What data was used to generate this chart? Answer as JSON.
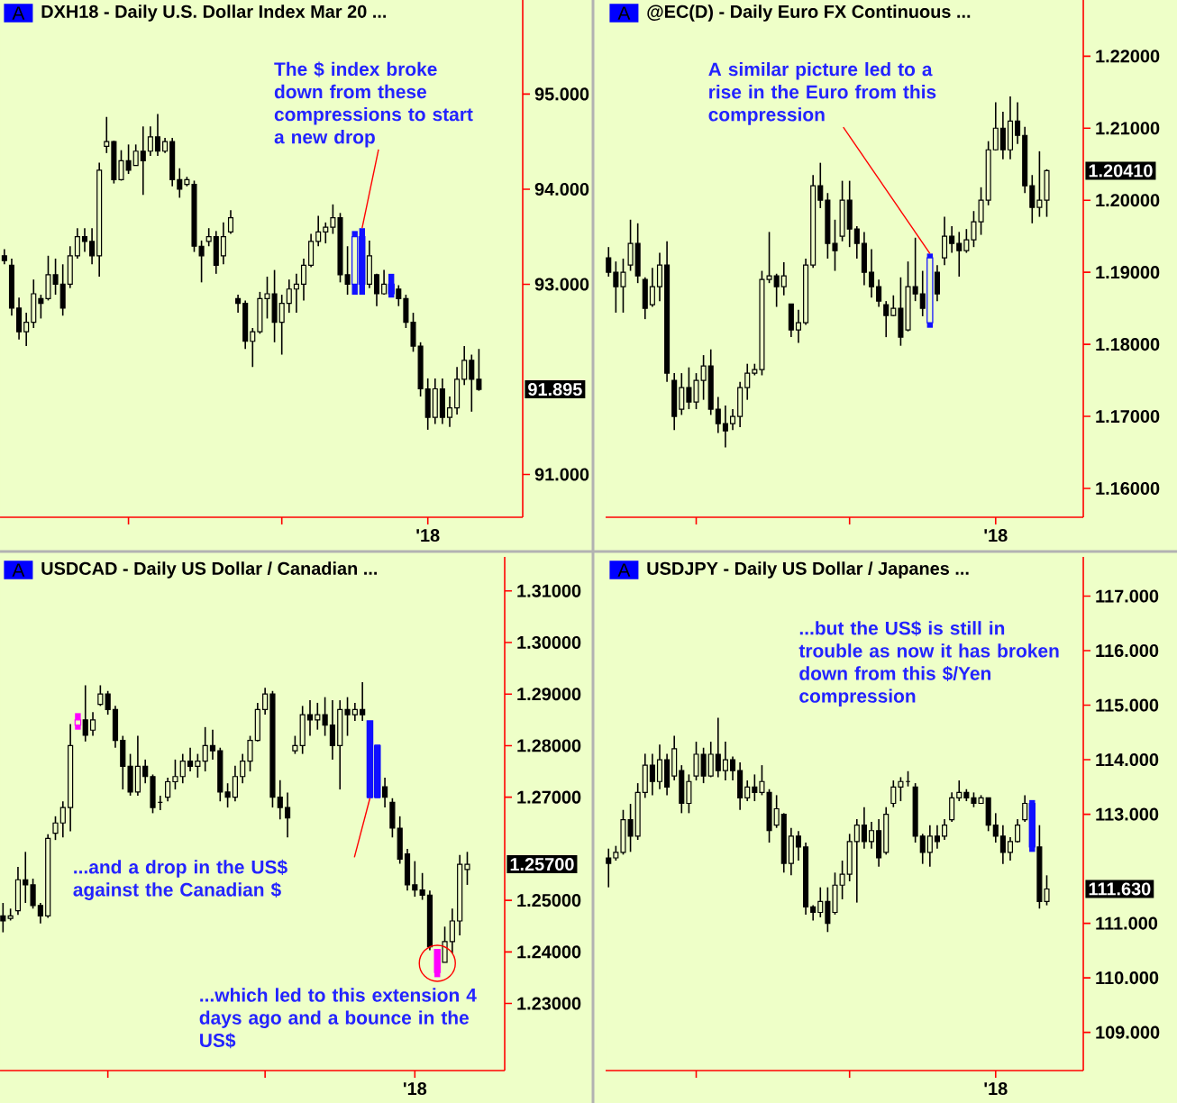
{
  "chart_data": [
    {
      "type": "candlestick",
      "title": "DXH18 - Daily  U.S. Dollar Index Mar 20 ...",
      "subtitle": "A",
      "categories": [
        null,
        null,
        null,
        null,
        null,
        null,
        null,
        null,
        null,
        null,
        null,
        null,
        null,
        null,
        null,
        null,
        null,
        null,
        null,
        null,
        null,
        null,
        null,
        null,
        null,
        null,
        null,
        null,
        null,
        null,
        null,
        null,
        null,
        null,
        null,
        null,
        null,
        null,
        null,
        null,
        null,
        null,
        null,
        null,
        null,
        null,
        null,
        null,
        null,
        null,
        null,
        null,
        null,
        null,
        null,
        null,
        null,
        null,
        null,
        null,
        null,
        null,
        null,
        null,
        null,
        null
      ],
      "ohlc": [
        [
          93.3,
          93.37,
          93.21,
          93.25
        ],
        [
          93.2,
          93.27,
          92.67,
          92.75
        ],
        [
          92.75,
          92.86,
          92.42,
          92.5
        ],
        [
          92.5,
          92.7,
          92.35,
          92.6
        ],
        [
          92.6,
          93.05,
          92.54,
          92.9
        ],
        [
          92.85,
          92.89,
          92.64,
          92.8
        ],
        [
          92.85,
          93.3,
          92.83,
          93.1
        ],
        [
          93.1,
          93.27,
          92.89,
          93.0
        ],
        [
          93.0,
          93.21,
          92.67,
          92.75
        ],
        [
          93.0,
          93.4,
          92.96,
          93.3
        ],
        [
          93.3,
          93.59,
          93.27,
          93.5
        ],
        [
          93.5,
          93.59,
          93.34,
          93.45
        ],
        [
          93.45,
          93.59,
          93.21,
          93.3
        ],
        [
          93.3,
          94.28,
          93.08,
          94.2
        ],
        [
          94.45,
          94.76,
          94.38,
          94.5
        ],
        [
          94.5,
          94.51,
          94.06,
          94.1
        ],
        [
          94.1,
          94.41,
          94.09,
          94.3
        ],
        [
          94.3,
          94.47,
          94.16,
          94.2
        ],
        [
          94.25,
          94.47,
          94.25,
          94.4
        ],
        [
          94.4,
          94.66,
          93.94,
          94.3
        ],
        [
          94.4,
          94.66,
          94.35,
          94.55
        ],
        [
          94.55,
          94.79,
          94.35,
          94.4
        ],
        [
          94.4,
          94.54,
          94.38,
          94.5
        ],
        [
          94.5,
          94.54,
          94.03,
          94.1
        ],
        [
          94.1,
          94.22,
          93.91,
          94.0
        ],
        [
          94.05,
          94.13,
          94.03,
          94.1
        ],
        [
          94.05,
          94.09,
          93.34,
          93.4
        ],
        [
          93.4,
          93.46,
          93.02,
          93.3
        ],
        [
          93.45,
          93.59,
          93.4,
          93.5
        ],
        [
          93.5,
          93.56,
          93.11,
          93.2
        ],
        [
          93.3,
          93.65,
          93.21,
          93.5
        ],
        [
          93.55,
          93.78,
          93.53,
          93.7
        ],
        [
          92.85,
          92.89,
          92.7,
          92.8
        ],
        [
          92.8,
          92.83,
          92.32,
          92.4
        ],
        [
          92.4,
          92.54,
          92.13,
          92.5
        ],
        [
          92.5,
          92.92,
          92.48,
          92.85
        ],
        [
          92.85,
          93.08,
          92.64,
          92.9
        ],
        [
          92.9,
          93.15,
          92.39,
          92.6
        ],
        [
          92.6,
          92.89,
          92.26,
          92.8
        ],
        [
          92.8,
          93.05,
          92.7,
          92.95
        ],
        [
          92.95,
          93.11,
          92.7,
          93.0
        ],
        [
          93.0,
          93.27,
          92.83,
          93.2
        ],
        [
          93.2,
          93.53,
          93.18,
          93.45
        ],
        [
          93.45,
          93.72,
          93.4,
          93.55
        ],
        [
          93.55,
          93.65,
          93.43,
          93.6
        ],
        [
          93.6,
          93.84,
          93.53,
          93.7
        ],
        [
          93.7,
          93.75,
          93.02,
          93.1
        ],
        [
          93.1,
          93.4,
          92.89,
          93.0
        ],
        [
          93.0,
          93.56,
          92.89,
          93.5
        ],
        [
          93.5,
          93.59,
          92.89,
          93.0
        ],
        [
          93.0,
          93.46,
          92.96,
          93.3
        ],
        [
          93.1,
          93.11,
          92.77,
          92.9
        ],
        [
          92.9,
          93.15,
          92.89,
          93.0
        ],
        [
          93.0,
          93.11,
          92.86,
          92.9
        ],
        [
          92.95,
          92.99,
          92.77,
          92.85
        ],
        [
          92.85,
          92.89,
          92.54,
          92.6
        ],
        [
          92.6,
          92.7,
          92.29,
          92.35
        ],
        [
          92.35,
          92.39,
          91.82,
          91.9
        ],
        [
          91.9,
          92.01,
          91.47,
          91.6
        ],
        [
          91.6,
          92.01,
          91.53,
          91.9
        ],
        [
          91.9,
          92.01,
          91.53,
          91.6
        ],
        [
          91.6,
          91.82,
          91.5,
          91.7
        ],
        [
          91.7,
          92.13,
          91.63,
          92.0
        ],
        [
          92.0,
          92.35,
          91.94,
          92.2
        ],
        [
          92.2,
          92.26,
          91.66,
          92.0
        ],
        [
          92.0,
          92.32,
          91.88,
          91.895
        ]
      ],
      "colors": [
        "#000000",
        "#000000",
        "#000000",
        "#000000",
        "#000000",
        "#000000",
        "#000000",
        "#000000",
        "#000000",
        "#000000",
        "#000000",
        "#000000",
        "#000000",
        "#000000",
        "#000000",
        "#000000",
        "#000000",
        "#000000",
        "#000000",
        "#000000",
        "#000000",
        "#000000",
        "#000000",
        "#000000",
        "#000000",
        "#000000",
        "#000000",
        "#000000",
        "#000000",
        "#000000",
        "#000000",
        "#000000",
        "#000000",
        "#000000",
        "#000000",
        "#000000",
        "#000000",
        "#000000",
        "#000000",
        "#000000",
        "#000000",
        "#000000",
        "#000000",
        "#000000",
        "#000000",
        "#000000",
        "#000000",
        "#000000",
        "#1010ff",
        "#1010ff",
        "#000000",
        "#000000",
        "#000000",
        "#1010ff",
        "#000000",
        "#000000",
        "#000000",
        "#000000",
        "#000000",
        "#000000",
        "#000000",
        "#000000",
        "#000000",
        "#000000",
        "#000000",
        "#000000"
      ],
      "ylim": [
        90.55,
        95.99
      ],
      "yticks": [
        {
          "value": 91,
          "label": "91.000"
        },
        {
          "value": 93,
          "label": "93.000"
        },
        {
          "value": 94,
          "label": "94.000"
        },
        {
          "value": 95,
          "label": "95.000"
        }
      ],
      "annotations": [
        "The $ index broke down from these compressions to start a new drop",
        "91.895",
        "'18"
      ]
    },
    {
      "type": "candlestick",
      "title": "@EC(D) - Daily  Euro FX Continuous ...",
      "subtitle": "A",
      "categories": [
        null,
        null,
        null,
        null,
        null,
        null,
        null,
        null,
        null,
        null,
        null,
        null,
        null,
        null,
        null,
        null,
        null,
        null,
        null,
        null,
        null,
        null,
        null,
        null,
        null,
        null,
        null,
        null,
        null,
        null,
        null,
        null,
        null,
        null,
        null,
        null,
        null,
        null,
        null,
        null,
        null,
        null,
        null,
        null,
        null,
        null,
        null,
        null,
        null,
        null,
        null,
        null,
        null,
        null,
        null,
        null,
        null,
        null,
        null,
        null,
        null
      ],
      "ohlc": [
        [
          1.192,
          1.1935,
          1.1894,
          1.19
        ],
        [
          1.19,
          1.1915,
          1.1844,
          1.188
        ],
        [
          1.188,
          1.1919,
          1.1844,
          1.19
        ],
        [
          1.191,
          1.1973,
          1.1902,
          1.194
        ],
        [
          1.194,
          1.1968,
          1.1885,
          1.1895
        ],
        [
          1.189,
          1.1893,
          1.1835,
          1.185
        ],
        [
          1.1855,
          1.1906,
          1.1852,
          1.188
        ],
        [
          1.188,
          1.1927,
          1.186,
          1.191
        ],
        [
          1.191,
          1.1943,
          1.1748,
          1.176
        ],
        [
          1.175,
          1.176,
          1.1681,
          1.17
        ],
        [
          1.171,
          1.176,
          1.1702,
          1.174
        ],
        [
          1.174,
          1.1768,
          1.171,
          1.172
        ],
        [
          1.172,
          1.176,
          1.171,
          1.175
        ],
        [
          1.175,
          1.1785,
          1.1723,
          1.177
        ],
        [
          1.177,
          1.1793,
          1.1702,
          1.171
        ],
        [
          1.171,
          1.1727,
          1.1677,
          1.169
        ],
        [
          1.169,
          1.1715,
          1.1657,
          1.168
        ],
        [
          1.169,
          1.171,
          1.1681,
          1.17
        ],
        [
          1.17,
          1.1748,
          1.1685,
          1.174
        ],
        [
          1.174,
          1.1773,
          1.1723,
          1.176
        ],
        [
          1.176,
          1.1773,
          1.1757,
          1.1765
        ],
        [
          1.1765,
          1.1902,
          1.1757,
          1.189
        ],
        [
          1.189,
          1.1956,
          1.1885,
          1.1895
        ],
        [
          1.1895,
          1.1898,
          1.1852,
          1.188
        ],
        [
          1.188,
          1.1914,
          1.1868,
          1.1895
        ],
        [
          1.1856,
          1.1856,
          1.181,
          1.182
        ],
        [
          1.182,
          1.1848,
          1.1802,
          1.183
        ],
        [
          1.183,
          1.1919,
          1.1827,
          1.191
        ],
        [
          1.191,
          1.2035,
          1.1906,
          1.202
        ],
        [
          1.202,
          1.2052,
          1.1989,
          1.2
        ],
        [
          1.2,
          1.201,
          1.1919,
          1.194
        ],
        [
          1.194,
          1.1973,
          1.1902,
          1.193
        ],
        [
          1.195,
          1.2027,
          1.1943,
          1.2
        ],
        [
          1.2,
          1.2027,
          1.1935,
          1.196
        ],
        [
          1.196,
          1.1964,
          1.1919,
          1.194
        ],
        [
          1.194,
          1.1956,
          1.1882,
          1.19
        ],
        [
          1.19,
          1.1932,
          1.1865,
          1.188
        ],
        [
          1.188,
          1.189,
          1.1852,
          1.186
        ],
        [
          1.1855,
          1.186,
          1.181,
          1.184
        ],
        [
          1.184,
          1.1868,
          1.1839,
          1.185
        ],
        [
          1.185,
          1.1893,
          1.1798,
          1.181
        ],
        [
          1.182,
          1.1915,
          1.1818,
          1.188
        ],
        [
          1.188,
          1.1948,
          1.186,
          1.187
        ],
        [
          1.187,
          1.1902,
          1.1839,
          1.185
        ],
        [
          1.183,
          1.1926,
          1.1823,
          1.192
        ],
        [
          1.19,
          1.191,
          1.186,
          1.187
        ],
        [
          1.192,
          1.1977,
          1.191,
          1.195
        ],
        [
          1.195,
          1.1964,
          1.1927,
          1.194
        ],
        [
          1.194,
          1.1956,
          1.1894,
          1.193
        ],
        [
          1.193,
          1.196,
          1.1927,
          1.1945
        ],
        [
          1.1945,
          1.1985,
          1.1935,
          1.197
        ],
        [
          1.197,
          1.2018,
          1.1952,
          1.2
        ],
        [
          1.2,
          1.2082,
          1.1993,
          1.207
        ],
        [
          1.207,
          1.2136,
          1.2069,
          1.21
        ],
        [
          1.21,
          1.2123,
          1.2057,
          1.207
        ],
        [
          1.207,
          1.2144,
          1.2057,
          1.211
        ],
        [
          1.211,
          1.2136,
          1.2078,
          1.209
        ],
        [
          1.209,
          1.2102,
          1.201,
          1.202
        ],
        [
          1.202,
          1.2035,
          1.1968,
          1.199
        ],
        [
          1.199,
          1.2068,
          1.1977,
          1.2
        ],
        [
          1.2,
          1.2043,
          1.1977,
          1.2041
        ]
      ],
      "colors": [
        "#000000",
        "#000000",
        "#000000",
        "#000000",
        "#000000",
        "#000000",
        "#000000",
        "#000000",
        "#000000",
        "#000000",
        "#000000",
        "#000000",
        "#000000",
        "#000000",
        "#000000",
        "#000000",
        "#000000",
        "#000000",
        "#000000",
        "#000000",
        "#000000",
        "#000000",
        "#000000",
        "#000000",
        "#000000",
        "#000000",
        "#000000",
        "#000000",
        "#000000",
        "#000000",
        "#000000",
        "#000000",
        "#000000",
        "#000000",
        "#000000",
        "#000000",
        "#000000",
        "#000000",
        "#000000",
        "#000000",
        "#000000",
        "#000000",
        "#000000",
        "#000000",
        "#1010ff",
        "#000000",
        "#000000",
        "#000000",
        "#000000",
        "#000000",
        "#000000",
        "#000000",
        "#000000",
        "#000000",
        "#000000",
        "#000000",
        "#000000",
        "#000000",
        "#000000",
        "#000000",
        "#000000"
      ],
      "ylim": [
        1.156,
        1.2278
      ],
      "yticks": [
        {
          "value": 1.16,
          "label": "1.16000"
        },
        {
          "value": 1.17,
          "label": "1.17000"
        },
        {
          "value": 1.18,
          "label": "1.18000"
        },
        {
          "value": 1.19,
          "label": "1.19000"
        },
        {
          "value": 1.2,
          "label": "1.20000"
        },
        {
          "value": 1.21,
          "label": "1.21000"
        },
        {
          "value": 1.22,
          "label": "1.22000"
        }
      ],
      "annotations": [
        "A similar picture led to a rise in the Euro from this compression",
        "1.20410",
        "'18"
      ]
    },
    {
      "type": "candlestick",
      "title": "USDCAD - Daily  US Dollar / Canadian ...",
      "subtitle": "A",
      "categories": [
        null,
        null,
        null,
        null,
        null,
        null,
        null,
        null,
        null,
        null,
        null,
        null,
        null,
        null,
        null,
        null,
        null,
        null,
        null,
        null,
        null,
        null,
        null,
        null,
        null,
        null,
        null,
        null,
        null,
        null,
        null,
        null,
        null,
        null,
        null,
        null,
        null,
        null,
        null,
        null,
        null,
        null,
        null,
        null,
        null,
        null,
        null,
        null,
        null,
        null,
        null,
        null,
        null,
        null,
        null,
        null,
        null,
        null,
        null,
        null,
        null,
        null,
        null
      ],
      "ohlc": [
        [
          1.247,
          1.2495,
          1.2438,
          1.246
        ],
        [
          1.2465,
          1.2484,
          1.2461,
          1.247
        ],
        [
          1.248,
          1.2565,
          1.2472,
          1.254
        ],
        [
          1.254,
          1.2594,
          1.2495,
          1.253
        ],
        [
          1.253,
          1.2542,
          1.2484,
          1.249
        ],
        [
          1.249,
          1.2495,
          1.2455,
          1.247
        ],
        [
          1.247,
          1.2628,
          1.2466,
          1.262
        ],
        [
          1.263,
          1.2663,
          1.2617,
          1.265
        ],
        [
          1.265,
          1.2692,
          1.2622,
          1.268
        ],
        [
          1.268,
          1.2842,
          1.2634,
          1.28
        ],
        [
          1.284,
          1.2863,
          1.2831,
          1.285
        ],
        [
          1.285,
          1.2917,
          1.2808,
          1.282
        ],
        [
          1.283,
          1.2865,
          1.2819,
          1.285
        ],
        [
          1.288,
          1.2917,
          1.2877,
          1.29
        ],
        [
          1.29,
          1.2906,
          1.286,
          1.287
        ],
        [
          1.287,
          1.2877,
          1.2796,
          1.281
        ],
        [
          1.281,
          1.2819,
          1.2715,
          1.276
        ],
        [
          1.276,
          1.2784,
          1.2703,
          1.271
        ],
        [
          1.271,
          1.2819,
          1.2703,
          1.276
        ],
        [
          1.276,
          1.2773,
          1.2727,
          1.274
        ],
        [
          1.274,
          1.2744,
          1.2669,
          1.268
        ],
        [
          1.269,
          1.2703,
          1.2675,
          1.269
        ],
        [
          1.27,
          1.2738,
          1.2692,
          1.273
        ],
        [
          1.273,
          1.2773,
          1.2715,
          1.274
        ],
        [
          1.274,
          1.2784,
          1.2727,
          1.277
        ],
        [
          1.277,
          1.2796,
          1.275,
          1.276
        ],
        [
          1.276,
          1.2784,
          1.2738,
          1.277
        ],
        [
          1.277,
          1.2836,
          1.275,
          1.28
        ],
        [
          1.28,
          1.2831,
          1.2773,
          1.279
        ],
        [
          1.279,
          1.2796,
          1.2692,
          1.271
        ],
        [
          1.271,
          1.2727,
          1.268,
          1.27
        ],
        [
          1.27,
          1.2761,
          1.2692,
          1.274
        ],
        [
          1.274,
          1.2784,
          1.2727,
          1.277
        ],
        [
          1.277,
          1.2819,
          1.275,
          1.281
        ],
        [
          1.281,
          1.2883,
          1.2808,
          1.287
        ],
        [
          1.287,
          1.2912,
          1.286,
          1.29
        ],
        [
          1.29,
          1.2906,
          1.268,
          1.27
        ],
        [
          1.27,
          1.2733,
          1.2657,
          1.268
        ],
        [
          1.268,
          1.2709,
          1.2622,
          1.266
        ],
        [
          1.279,
          1.2819,
          1.2784,
          1.28
        ],
        [
          1.28,
          1.2877,
          1.2784,
          1.286
        ],
        [
          1.286,
          1.2888,
          1.2819,
          1.285
        ],
        [
          1.285,
          1.2883,
          1.2831,
          1.286
        ],
        [
          1.286,
          1.2894,
          1.2819,
          1.284
        ],
        [
          1.284,
          1.2888,
          1.2773,
          1.28
        ],
        [
          1.28,
          1.2888,
          1.2715,
          1.287
        ],
        [
          1.287,
          1.2894,
          1.2819,
          1.286
        ],
        [
          1.286,
          1.2883,
          1.2848,
          1.287
        ],
        [
          1.287,
          1.2923,
          1.2848,
          1.286
        ],
        [
          1.2848,
          1.2848,
          1.2698,
          1.27
        ],
        [
          1.28,
          1.2802,
          1.2698,
          1.27
        ],
        [
          1.272,
          1.2738,
          1.268,
          1.27
        ],
        [
          1.269,
          1.2698,
          1.2622,
          1.264
        ],
        [
          1.264,
          1.2663,
          1.2571,
          1.258
        ],
        [
          1.259,
          1.26,
          1.2519,
          1.253
        ],
        [
          1.253,
          1.2576,
          1.2507,
          1.252
        ],
        [
          1.252,
          1.2553,
          1.2501,
          1.251
        ],
        [
          1.251,
          1.2519,
          1.2403,
          1.241
        ],
        [
          1.2405,
          1.2405,
          1.2351,
          1.236
        ],
        [
          1.238,
          1.2449,
          1.238,
          1.242
        ],
        [
          1.242,
          1.2484,
          1.2397,
          1.246
        ],
        [
          1.246,
          1.2588,
          1.2432,
          1.257
        ],
        [
          1.256,
          1.2594,
          1.253,
          1.257
        ]
      ],
      "colors": [
        "#000000",
        "#000000",
        "#000000",
        "#000000",
        "#000000",
        "#000000",
        "#000000",
        "#000000",
        "#000000",
        "#000000",
        "#ff00ff",
        "#000000",
        "#000000",
        "#000000",
        "#000000",
        "#000000",
        "#000000",
        "#000000",
        "#000000",
        "#000000",
        "#000000",
        "#000000",
        "#000000",
        "#000000",
        "#000000",
        "#000000",
        "#000000",
        "#000000",
        "#000000",
        "#000000",
        "#000000",
        "#000000",
        "#000000",
        "#000000",
        "#000000",
        "#000000",
        "#000000",
        "#000000",
        "#000000",
        "#000000",
        "#000000",
        "#000000",
        "#000000",
        "#000000",
        "#000000",
        "#000000",
        "#000000",
        "#000000",
        "#000000",
        "#1010ff",
        "#1010ff",
        "#000000",
        "#000000",
        "#000000",
        "#000000",
        "#000000",
        "#000000",
        "#000000",
        "#ff00ff",
        "#000000",
        "#000000",
        "#000000",
        "#000000"
      ],
      "ylim": [
        1.217,
        1.3166
      ],
      "yticks": [
        {
          "value": 1.23,
          "label": "1.23000"
        },
        {
          "value": 1.24,
          "label": "1.24000"
        },
        {
          "value": 1.25,
          "label": "1.25000"
        },
        {
          "value": 1.27,
          "label": "1.27000"
        },
        {
          "value": 1.28,
          "label": "1.28000"
        },
        {
          "value": 1.29,
          "label": "1.29000"
        },
        {
          "value": 1.3,
          "label": "1.30000"
        },
        {
          "value": 1.31,
          "label": "1.31000"
        }
      ],
      "annotations": [
        "...and a drop in the US$ against the Canadian $",
        "...which led to this extension 4 days ago and a bounce in the US$",
        "1.25700",
        "'18"
      ]
    },
    {
      "type": "candlestick",
      "title": "USDJPY - Daily  US Dollar / Japanes ...",
      "subtitle": "A",
      "categories": [
        null,
        null,
        null,
        null,
        null,
        null,
        null,
        null,
        null,
        null,
        null,
        null,
        null,
        null,
        null,
        null,
        null,
        null,
        null,
        null,
        null,
        null,
        null,
        null,
        null,
        null,
        null,
        null,
        null,
        null,
        null,
        null,
        null,
        null,
        null,
        null,
        null,
        null,
        null,
        null,
        null,
        null,
        null,
        null,
        null,
        null,
        null,
        null,
        null,
        null,
        null,
        null,
        null,
        null,
        null,
        null,
        null,
        null,
        null,
        null,
        null
      ],
      "ohlc": [
        [
          112.2,
          112.37,
          111.66,
          112.1
        ],
        [
          112.2,
          112.42,
          112.15,
          112.3
        ],
        [
          112.3,
          113.08,
          112.26,
          112.9
        ],
        [
          112.9,
          113.19,
          112.31,
          112.6
        ],
        [
          112.6,
          113.57,
          112.53,
          113.4
        ],
        [
          113.4,
          114.11,
          113.3,
          113.9
        ],
        [
          113.9,
          114.11,
          113.35,
          113.6
        ],
        [
          113.6,
          114.28,
          113.46,
          114.0
        ],
        [
          114.0,
          114.11,
          113.35,
          113.5
        ],
        [
          113.7,
          114.44,
          113.62,
          114.2
        ],
        [
          113.8,
          113.9,
          113.02,
          113.2
        ],
        [
          113.2,
          113.73,
          113.02,
          113.6
        ],
        [
          113.7,
          114.33,
          113.62,
          114.1
        ],
        [
          114.1,
          114.22,
          113.57,
          113.7
        ],
        [
          113.7,
          114.33,
          113.68,
          114.1
        ],
        [
          114.1,
          114.77,
          113.68,
          113.8
        ],
        [
          113.8,
          114.33,
          113.62,
          114.0
        ],
        [
          114.0,
          114.06,
          113.62,
          113.8
        ],
        [
          113.8,
          113.95,
          113.08,
          113.3
        ],
        [
          113.3,
          113.62,
          113.24,
          113.5
        ],
        [
          113.5,
          113.73,
          113.24,
          113.4
        ],
        [
          113.4,
          113.9,
          113.35,
          113.6
        ],
        [
          113.4,
          113.46,
          112.48,
          112.7
        ],
        [
          112.8,
          113.35,
          112.75,
          113.1
        ],
        [
          113.0,
          113.02,
          111.93,
          112.1
        ],
        [
          112.1,
          112.75,
          111.88,
          112.6
        ],
        [
          112.6,
          112.69,
          112.15,
          112.4
        ],
        [
          112.4,
          112.48,
          111.16,
          111.3
        ],
        [
          111.3,
          111.33,
          111.05,
          111.2
        ],
        [
          111.2,
          111.66,
          111.11,
          111.4
        ],
        [
          111.4,
          111.66,
          110.84,
          111.0
        ],
        [
          111.2,
          111.93,
          111.16,
          111.7
        ],
        [
          111.7,
          112.15,
          111.44,
          111.9
        ],
        [
          111.9,
          112.64,
          111.77,
          112.5
        ],
        [
          112.5,
          112.91,
          111.38,
          112.8
        ],
        [
          112.8,
          113.13,
          112.37,
          112.5
        ],
        [
          112.5,
          112.86,
          112.37,
          112.7
        ],
        [
          112.7,
          112.91,
          112.04,
          112.2
        ],
        [
          112.3,
          113.13,
          112.26,
          113.0
        ],
        [
          113.2,
          113.62,
          113.13,
          113.5
        ],
        [
          113.5,
          113.68,
          113.24,
          113.6
        ],
        [
          113.6,
          113.79,
          113.51,
          113.6
        ],
        [
          113.5,
          113.57,
          112.48,
          112.6
        ],
        [
          112.6,
          112.64,
          112.09,
          112.3
        ],
        [
          112.3,
          112.8,
          112.04,
          112.6
        ],
        [
          112.6,
          112.8,
          112.37,
          112.5
        ],
        [
          112.6,
          112.91,
          112.53,
          112.8
        ],
        [
          112.9,
          113.4,
          112.86,
          113.3
        ],
        [
          113.3,
          113.62,
          113.24,
          113.4
        ],
        [
          113.4,
          113.46,
          113.24,
          113.3
        ],
        [
          113.3,
          113.4,
          113.13,
          113.2
        ],
        [
          113.2,
          113.35,
          113.19,
          113.3
        ],
        [
          113.3,
          113.3,
          112.69,
          112.8
        ],
        [
          112.8,
          113.02,
          112.48,
          112.6
        ],
        [
          112.6,
          112.8,
          112.09,
          112.3
        ],
        [
          112.3,
          112.58,
          112.15,
          112.5
        ],
        [
          112.5,
          112.91,
          112.48,
          112.8
        ],
        [
          112.9,
          113.35,
          112.86,
          113.2
        ],
        [
          113.2,
          113.26,
          112.31,
          112.4
        ],
        [
          112.4,
          112.8,
          111.27,
          111.4
        ],
        [
          111.4,
          111.88,
          111.33,
          111.63
        ]
      ],
      "colors": [
        "#000000",
        "#000000",
        "#000000",
        "#000000",
        "#000000",
        "#000000",
        "#000000",
        "#000000",
        "#000000",
        "#000000",
        "#000000",
        "#000000",
        "#000000",
        "#000000",
        "#000000",
        "#000000",
        "#000000",
        "#000000",
        "#000000",
        "#000000",
        "#000000",
        "#000000",
        "#000000",
        "#000000",
        "#000000",
        "#000000",
        "#000000",
        "#000000",
        "#000000",
        "#000000",
        "#000000",
        "#000000",
        "#000000",
        "#000000",
        "#000000",
        "#000000",
        "#000000",
        "#000000",
        "#000000",
        "#000000",
        "#000000",
        "#000000",
        "#000000",
        "#000000",
        "#000000",
        "#000000",
        "#000000",
        "#000000",
        "#000000",
        "#000000",
        "#000000",
        "#000000",
        "#000000",
        "#000000",
        "#000000",
        "#000000",
        "#000000",
        "#000000",
        "#1010ff",
        "#000000",
        "#000000"
      ],
      "ylim": [
        108.3,
        117.72
      ],
      "yticks": [
        {
          "value": 109,
          "label": "109.000"
        },
        {
          "value": 110,
          "label": "110.000"
        },
        {
          "value": 111,
          "label": "111.000"
        },
        {
          "value": 113,
          "label": "113.000"
        },
        {
          "value": 114,
          "label": "114.000"
        },
        {
          "value": 115,
          "label": "115.000"
        },
        {
          "value": 116,
          "label": "116.000"
        },
        {
          "value": 117,
          "label": "117.000"
        }
      ],
      "annotations": [
        "...but the US$ is still in trouble as now it has broken down from this $/Yen compression",
        "111.630",
        "'18"
      ]
    }
  ]
}
